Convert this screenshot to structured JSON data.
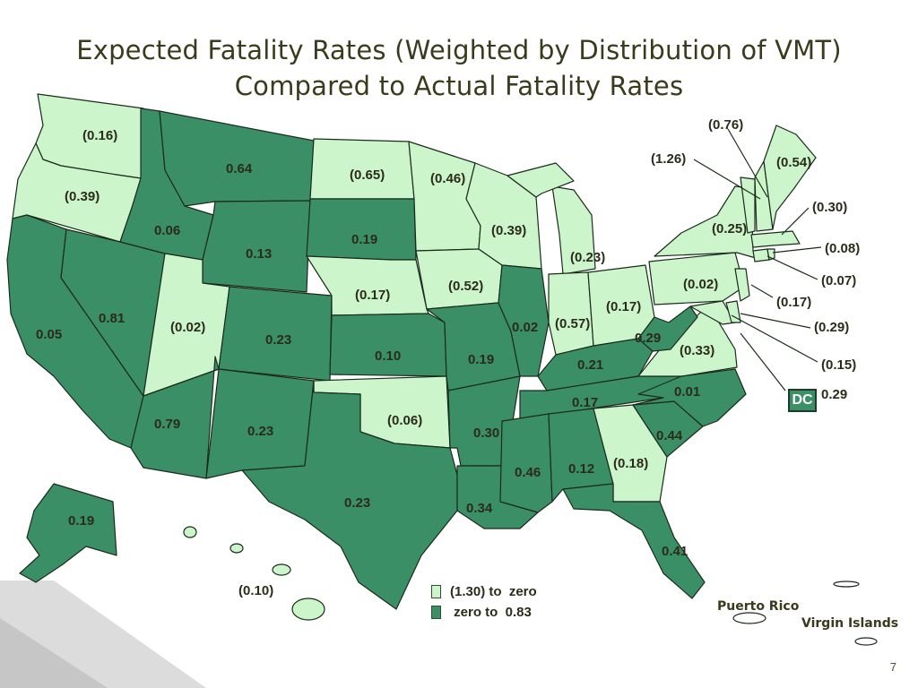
{
  "title": {
    "line1": "Expected Fatality Rates (Weighted by Distribution of VMT)",
    "line2": "Compared to Actual Fatality Rates"
  },
  "colors": {
    "negative_fill": "#ccf5cc",
    "positive_fill": "#3a8f66",
    "border": "#1b2b1b",
    "background_corner": "#d8d8d8"
  },
  "legend": {
    "items": [
      {
        "label": "(1.30) to  zero",
        "color": "#ccf5cc"
      },
      {
        "label": " zero to  0.83",
        "color": "#3a8f66"
      }
    ]
  },
  "states": {
    "WA": "(0.16)",
    "OR": "(0.39)",
    "CA": "0.05",
    "NV": "0.81",
    "ID": "0.06",
    "MT": "0.64",
    "WY": "0.13",
    "UT": "(0.02)",
    "AZ": "0.79",
    "CO": "0.23",
    "NM": "0.23",
    "ND": "(0.65)",
    "SD": "0.19",
    "NE": "(0.17)",
    "KS": "0.10",
    "OK": "(0.06)",
    "TX": "0.23",
    "MN": "(0.46)",
    "IA": "(0.52)",
    "MO": "0.19",
    "AR": "0.30",
    "LA": "0.34",
    "WI": "(0.39)",
    "IL": "0.02",
    "MI": "(0.23)",
    "IN": "(0.57)",
    "OH": "(0.17)",
    "KY": "0.21",
    "TN": "0.17",
    "MS": "0.46",
    "AL": "0.12",
    "GA": "(0.18)",
    "FL": "0.41",
    "SC": "0.44",
    "NC": "0.01",
    "VA": "(0.33)",
    "WV": "0.29",
    "PA": "(0.02)",
    "NY": "(0.25)",
    "ME": "(0.54)",
    "NH": "(0.76)",
    "VT": "(1.26)",
    "MA": "(0.30)",
    "RI": "(0.08)",
    "CT": "(0.07)",
    "NJ": "(0.17)",
    "DE": "(0.29)",
    "MD": "(0.15)",
    "DC": "0.29",
    "AK": "0.19",
    "HI": "(0.10)"
  },
  "dc_label": "DC",
  "territories": {
    "puerto_rico": "Puerto Rico",
    "virgin_islands": "Virgin Islands"
  },
  "page_number": "7"
}
